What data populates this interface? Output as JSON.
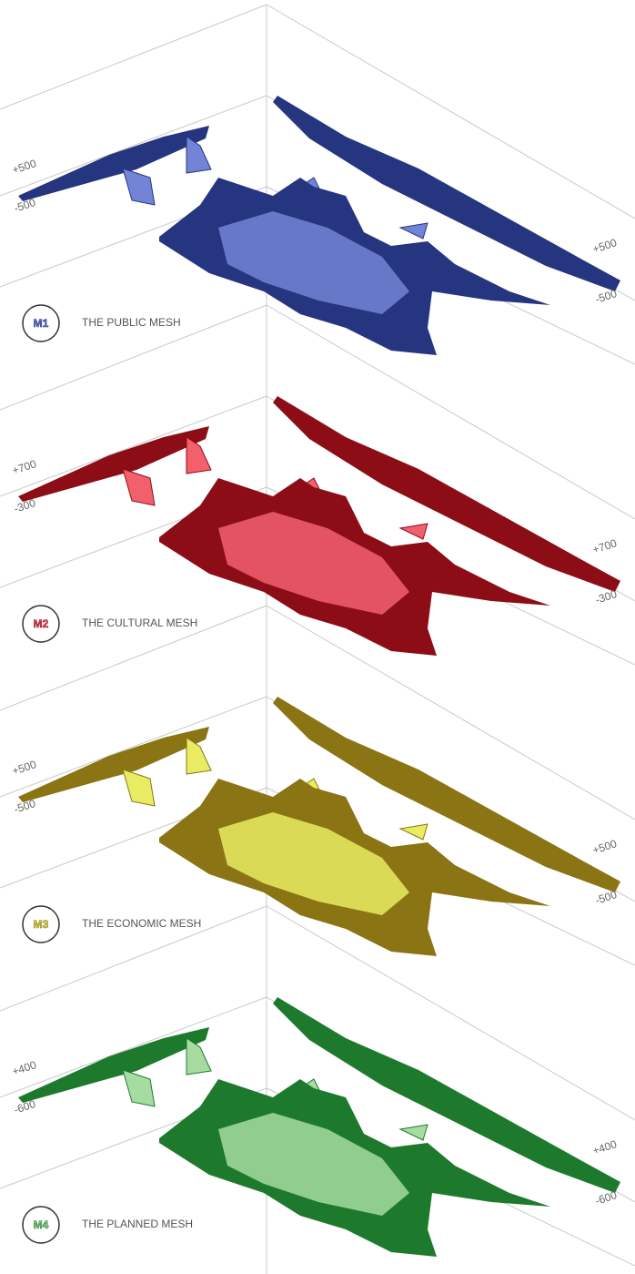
{
  "panels": [
    {
      "icon": "M1",
      "title": "THE PUBLIC MESH",
      "left_upper": "+500",
      "left_lower": "-500",
      "right_upper": "+500",
      "right_lower": "-500",
      "color": "#26357f",
      "light_color": "#7384d6"
    },
    {
      "icon": "M2",
      "title": "THE CULTURAL MESH",
      "left_upper": "+700",
      "left_lower": "-300",
      "right_upper": "+700",
      "right_lower": "-300",
      "color": "#8c0d16",
      "light_color": "#f2606e"
    },
    {
      "icon": "M3",
      "title": "THE ECONOMIC MESH",
      "left_upper": "+500",
      "left_lower": "-500",
      "right_upper": "+500",
      "right_lower": "-500",
      "color": "#8a7414",
      "light_color": "#e9ec62"
    },
    {
      "icon": "M4",
      "title": "THE PLANNED MESH",
      "left_upper": "+400",
      "left_lower": "-600",
      "right_upper": "+400",
      "right_lower": "-600",
      "color": "#1d7a2c",
      "light_color": "#a6dca0"
    }
  ]
}
